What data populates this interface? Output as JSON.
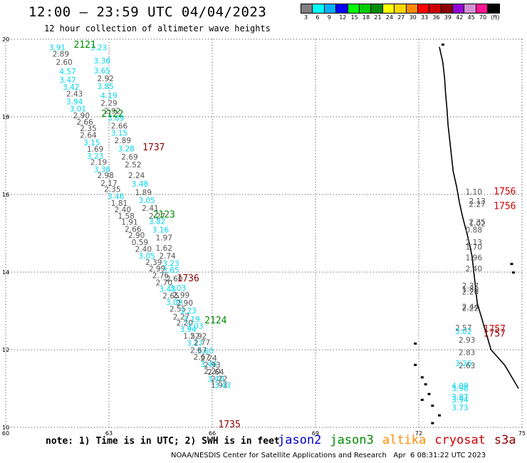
{
  "title": "12:00 — 23:59 UTC 04/04/2023",
  "subtitle": "12 hour collection of altimeter wave heights",
  "legend": {
    "colors": [
      "#7f7f7f",
      "#00ffff",
      "#00b0ff",
      "#0000ff",
      "#00ff00",
      "#00cd00",
      "#008b00",
      "#ffff00",
      "#ffd700",
      "#ff8c00",
      "#ff0000",
      "#cd0000",
      "#8b0000",
      "#9400d3",
      "#d48fd4",
      "#ff1493",
      "#000000"
    ],
    "labels": [
      "3",
      "6",
      "9",
      "12",
      "15",
      "18",
      "21",
      "24",
      "27",
      "30",
      "33",
      "36",
      "39",
      "42",
      "45",
      "70",
      "(ft)"
    ]
  },
  "note": "note: 1) Time is in UTC; 2) SWH is in feet",
  "credit": "NOAA/NESDIS Center for Satellite Applications and Research   Apr  6 08:31:22 UTC 2023",
  "missions": [
    {
      "name": "jason2",
      "color": "#0000cd"
    },
    {
      "name": "jason3",
      "color": "#008b00"
    },
    {
      "name": "altika",
      "color": "#ff8c00"
    },
    {
      "name": "cryosat",
      "color": "#cd0000"
    },
    {
      "name": "s3a",
      "color": "#8b0000"
    }
  ],
  "chart_data": {
    "type": "scatter",
    "title": "12:00 — 23:59 UTC 04/04/2023",
    "subtitle": "12 hour collection of altimeter wave heights",
    "xlabel": "",
    "ylabel": "",
    "xlim": [
      60,
      75
    ],
    "ylim": [
      10,
      20
    ],
    "x_ticks": [
      60,
      63,
      66,
      69,
      72,
      75
    ],
    "y_ticks": [
      10,
      12,
      14,
      16,
      18,
      20
    ],
    "grid": true,
    "gray_color": "#555555",
    "cyan_color": "#00d8f0",
    "points": [
      {
        "x": 61.5,
        "y": 19.72,
        "v": "3.91",
        "c": "cyan"
      },
      {
        "x": 62.7,
        "y": 19.72,
        "v": "3.23",
        "c": "cyan"
      },
      {
        "x": 61.6,
        "y": 19.55,
        "v": "2.89",
        "c": "gray"
      },
      {
        "x": 62.8,
        "y": 19.38,
        "v": "3.36",
        "c": "cyan"
      },
      {
        "x": 61.7,
        "y": 19.34,
        "v": "2.60",
        "c": "gray"
      },
      {
        "x": 62.8,
        "y": 19.12,
        "v": "3.65",
        "c": "cyan"
      },
      {
        "x": 61.8,
        "y": 19.1,
        "v": "4.57",
        "c": "cyan"
      },
      {
        "x": 62.9,
        "y": 18.92,
        "v": "2.92",
        "c": "gray"
      },
      {
        "x": 61.8,
        "y": 18.88,
        "v": "3.47",
        "c": "cyan"
      },
      {
        "x": 61.9,
        "y": 18.7,
        "v": "3.42",
        "c": "cyan"
      },
      {
        "x": 62.9,
        "y": 18.72,
        "v": "3.85",
        "c": "cyan"
      },
      {
        "x": 62.0,
        "y": 18.52,
        "v": "2.43",
        "c": "gray"
      },
      {
        "x": 63.0,
        "y": 18.48,
        "v": "4.19",
        "c": "cyan"
      },
      {
        "x": 62.0,
        "y": 18.32,
        "v": "3.94",
        "c": "cyan"
      },
      {
        "x": 63.0,
        "y": 18.28,
        "v": "2.29",
        "c": "gray"
      },
      {
        "x": 62.1,
        "y": 18.14,
        "v": "3.01",
        "c": "cyan"
      },
      {
        "x": 63.1,
        "y": 18.08,
        "v": "2.92",
        "c": "gray"
      },
      {
        "x": 62.2,
        "y": 17.96,
        "v": "2.90",
        "c": "gray"
      },
      {
        "x": 63.2,
        "y": 17.9,
        "v": "3.69",
        "c": "cyan"
      },
      {
        "x": 62.3,
        "y": 17.8,
        "v": "2.66",
        "c": "gray"
      },
      {
        "x": 63.3,
        "y": 17.7,
        "v": "2.66",
        "c": "gray"
      },
      {
        "x": 62.4,
        "y": 17.63,
        "v": "2.35",
        "c": "gray"
      },
      {
        "x": 63.3,
        "y": 17.51,
        "v": "3.15",
        "c": "cyan"
      },
      {
        "x": 62.4,
        "y": 17.46,
        "v": "2.64",
        "c": "gray"
      },
      {
        "x": 63.4,
        "y": 17.32,
        "v": "2.89",
        "c": "gray"
      },
      {
        "x": 62.5,
        "y": 17.27,
        "v": "3.15",
        "c": "cyan"
      },
      {
        "x": 62.6,
        "y": 17.1,
        "v": "1.69",
        "c": "gray"
      },
      {
        "x": 63.5,
        "y": 17.11,
        "v": "3.28",
        "c": "cyan"
      },
      {
        "x": 62.6,
        "y": 16.92,
        "v": "3.23",
        "c": "cyan"
      },
      {
        "x": 63.6,
        "y": 16.9,
        "v": "2.69",
        "c": "gray"
      },
      {
        "x": 62.7,
        "y": 16.76,
        "v": "2.19",
        "c": "gray"
      },
      {
        "x": 62.8,
        "y": 16.58,
        "v": "3.36",
        "c": "cyan"
      },
      {
        "x": 63.7,
        "y": 16.7,
        "v": "2.52",
        "c": "gray"
      },
      {
        "x": 62.9,
        "y": 16.42,
        "v": "2.98",
        "c": "gray"
      },
      {
        "x": 63.8,
        "y": 16.42,
        "v": "2.24",
        "c": "gray"
      },
      {
        "x": 63.0,
        "y": 16.22,
        "v": "2.17",
        "c": "gray"
      },
      {
        "x": 63.9,
        "y": 16.2,
        "v": "3.48",
        "c": "cyan"
      },
      {
        "x": 63.1,
        "y": 16.06,
        "v": "2.35",
        "c": "gray"
      },
      {
        "x": 64.0,
        "y": 15.98,
        "v": "1.89",
        "c": "gray"
      },
      {
        "x": 63.2,
        "y": 15.88,
        "v": "3.46",
        "c": "cyan"
      },
      {
        "x": 64.1,
        "y": 15.78,
        "v": "3.05",
        "c": "cyan"
      },
      {
        "x": 63.3,
        "y": 15.71,
        "v": "1.81",
        "c": "gray"
      },
      {
        "x": 64.2,
        "y": 15.58,
        "v": "2.41",
        "c": "gray"
      },
      {
        "x": 63.4,
        "y": 15.54,
        "v": "2.40",
        "c": "gray"
      },
      {
        "x": 63.5,
        "y": 15.38,
        "v": "1.58",
        "c": "gray"
      },
      {
        "x": 64.4,
        "y": 15.38,
        "v": "2.27",
        "c": "gray"
      },
      {
        "x": 64.4,
        "y": 15.24,
        "v": "3.82",
        "c": "cyan"
      },
      {
        "x": 63.6,
        "y": 15.22,
        "v": "1.91",
        "c": "gray"
      },
      {
        "x": 63.7,
        "y": 15.04,
        "v": "2.66",
        "c": "gray"
      },
      {
        "x": 64.5,
        "y": 15.02,
        "v": "3.16",
        "c": "cyan"
      },
      {
        "x": 63.8,
        "y": 14.88,
        "v": "2.90",
        "c": "gray"
      },
      {
        "x": 64.6,
        "y": 14.82,
        "v": "1.97",
        "c": "gray"
      },
      {
        "x": 63.9,
        "y": 14.7,
        "v": "0.59",
        "c": "gray"
      },
      {
        "x": 64.0,
        "y": 14.52,
        "v": "2.40",
        "c": "gray"
      },
      {
        "x": 64.6,
        "y": 14.55,
        "v": "1.62",
        "c": "gray"
      },
      {
        "x": 64.1,
        "y": 14.35,
        "v": "3.05",
        "c": "cyan"
      },
      {
        "x": 64.7,
        "y": 14.35,
        "v": "2.74",
        "c": "gray"
      },
      {
        "x": 64.3,
        "y": 14.18,
        "v": "2.39",
        "c": "gray"
      },
      {
        "x": 64.8,
        "y": 14.16,
        "v": "3.23",
        "c": "cyan"
      },
      {
        "x": 64.4,
        "y": 14.02,
        "v": "2.99",
        "c": "gray"
      },
      {
        "x": 64.8,
        "y": 13.98,
        "v": "3.65",
        "c": "cyan"
      },
      {
        "x": 64.5,
        "y": 13.84,
        "v": "2.76",
        "c": "gray"
      },
      {
        "x": 64.9,
        "y": 13.76,
        "v": "2.60",
        "c": "gray"
      },
      {
        "x": 64.6,
        "y": 13.66,
        "v": "2.70",
        "c": "gray"
      },
      {
        "x": 64.7,
        "y": 13.5,
        "v": "3.43",
        "c": "cyan"
      },
      {
        "x": 65.0,
        "y": 13.52,
        "v": "3.03",
        "c": "cyan"
      },
      {
        "x": 64.8,
        "y": 13.32,
        "v": "2.65",
        "c": "gray"
      },
      {
        "x": 65.1,
        "y": 13.34,
        "v": "2.99",
        "c": "gray"
      },
      {
        "x": 64.9,
        "y": 13.16,
        "v": "3.09",
        "c": "cyan"
      },
      {
        "x": 65.2,
        "y": 13.14,
        "v": "2.90",
        "c": "gray"
      },
      {
        "x": 65.0,
        "y": 12.98,
        "v": "2.55",
        "c": "gray"
      },
      {
        "x": 65.3,
        "y": 12.94,
        "v": "3.23",
        "c": "cyan"
      },
      {
        "x": 65.1,
        "y": 12.78,
        "v": "2.27",
        "c": "gray"
      },
      {
        "x": 65.4,
        "y": 12.72,
        "v": "3.19",
        "c": "cyan"
      },
      {
        "x": 65.2,
        "y": 12.62,
        "v": "2.20",
        "c": "gray"
      },
      {
        "x": 65.5,
        "y": 12.54,
        "v": "3.03",
        "c": "cyan"
      },
      {
        "x": 65.3,
        "y": 12.46,
        "v": "3.94",
        "c": "cyan"
      },
      {
        "x": 65.4,
        "y": 12.28,
        "v": "1.52",
        "c": "gray"
      },
      {
        "x": 65.6,
        "y": 12.28,
        "v": "2.92",
        "c": "gray"
      },
      {
        "x": 65.5,
        "y": 12.1,
        "v": "3.27",
        "c": "cyan"
      },
      {
        "x": 65.7,
        "y": 12.12,
        "v": "2.77",
        "c": "gray"
      },
      {
        "x": 65.8,
        "y": 11.9,
        "v": "3.60",
        "c": "cyan"
      },
      {
        "x": 65.6,
        "y": 11.92,
        "v": "2.67",
        "c": "gray"
      },
      {
        "x": 65.7,
        "y": 11.74,
        "v": "2.67",
        "c": "gray"
      },
      {
        "x": 65.9,
        "y": 11.72,
        "v": "2.24",
        "c": "gray"
      },
      {
        "x": 65.9,
        "y": 11.56,
        "v": "3.46",
        "c": "cyan"
      },
      {
        "x": 66.0,
        "y": 11.54,
        "v": "2.93",
        "c": "gray"
      },
      {
        "x": 66.0,
        "y": 11.38,
        "v": "2.20",
        "c": "gray"
      },
      {
        "x": 66.1,
        "y": 11.36,
        "v": "2.64",
        "c": "gray"
      },
      {
        "x": 66.1,
        "y": 11.18,
        "v": "3.40",
        "c": "cyan"
      },
      {
        "x": 66.2,
        "y": 11.18,
        "v": "2.22",
        "c": "gray"
      },
      {
        "x": 66.2,
        "y": 11.02,
        "v": "1.93",
        "c": "gray"
      },
      {
        "x": 66.3,
        "y": 11.02,
        "v": "3.43",
        "c": "cyan"
      },
      {
        "x": 73.6,
        "y": 16.0,
        "v": "1.10",
        "c": "gray"
      },
      {
        "x": 73.7,
        "y": 15.76,
        "v": "2.13",
        "c": "gray"
      },
      {
        "x": 73.7,
        "y": 15.68,
        "v": "2.27",
        "c": "gray"
      },
      {
        "x": 73.7,
        "y": 15.22,
        "v": "2.35",
        "c": "gray"
      },
      {
        "x": 73.7,
        "y": 15.18,
        "v": "1.02",
        "c": "gray"
      },
      {
        "x": 73.6,
        "y": 15.02,
        "v": "0.88",
        "c": "gray"
      },
      {
        "x": 73.6,
        "y": 14.7,
        "v": "2.13",
        "c": "gray"
      },
      {
        "x": 73.6,
        "y": 14.58,
        "v": "1.70",
        "c": "gray"
      },
      {
        "x": 73.6,
        "y": 14.3,
        "v": "1.96",
        "c": "gray"
      },
      {
        "x": 73.6,
        "y": 14.02,
        "v": "2.40",
        "c": "gray"
      },
      {
        "x": 73.5,
        "y": 13.58,
        "v": "2.37",
        "c": "gray"
      },
      {
        "x": 73.5,
        "y": 13.5,
        "v": "1.80",
        "c": "gray"
      },
      {
        "x": 73.5,
        "y": 13.42,
        "v": "2.20",
        "c": "gray"
      },
      {
        "x": 73.5,
        "y": 13.04,
        "v": "2.44",
        "c": "gray"
      },
      {
        "x": 73.5,
        "y": 13.0,
        "v": "2.22",
        "c": "gray"
      },
      {
        "x": 73.3,
        "y": 12.5,
        "v": "2.57",
        "c": "gray"
      },
      {
        "x": 73.3,
        "y": 12.4,
        "v": "3.02",
        "c": "cyan"
      },
      {
        "x": 73.4,
        "y": 12.18,
        "v": "2.93",
        "c": "gray"
      },
      {
        "x": 73.4,
        "y": 11.86,
        "v": "2.83",
        "c": "gray"
      },
      {
        "x": 73.3,
        "y": 11.58,
        "v": "3.26",
        "c": "cyan"
      },
      {
        "x": 73.4,
        "y": 11.52,
        "v": "2.63",
        "c": "gray"
      },
      {
        "x": 73.2,
        "y": 11.0,
        "v": "4.09",
        "c": "cyan"
      },
      {
        "x": 73.2,
        "y": 10.94,
        "v": "3.98",
        "c": "cyan"
      },
      {
        "x": 73.2,
        "y": 10.72,
        "v": "3.87",
        "c": "cyan"
      },
      {
        "x": 73.2,
        "y": 10.64,
        "v": "3.94",
        "c": "cyan"
      },
      {
        "x": 73.2,
        "y": 10.44,
        "v": "3.73",
        "c": "cyan"
      }
    ],
    "passes": [
      {
        "x": 62.3,
        "y": 19.78,
        "label": "2121",
        "mission": "jason3"
      },
      {
        "x": 63.1,
        "y": 18.0,
        "label": "2122",
        "mission": "jason3"
      },
      {
        "x": 64.6,
        "y": 15.4,
        "label": "2123",
        "mission": "jason3"
      },
      {
        "x": 66.1,
        "y": 12.68,
        "label": "2124",
        "mission": "jason3"
      },
      {
        "x": 64.3,
        "y": 17.14,
        "label": "1737",
        "mission": "s3a"
      },
      {
        "x": 65.3,
        "y": 13.76,
        "label": "1736",
        "mission": "s3a"
      },
      {
        "x": 66.5,
        "y": 10.0,
        "label": "1735",
        "mission": "s3a"
      },
      {
        "x": 74.5,
        "y": 16.0,
        "label": "1756",
        "mission": "cryosat"
      },
      {
        "x": 74.5,
        "y": 15.62,
        "label": "1756",
        "mission": "cryosat"
      },
      {
        "x": 74.2,
        "y": 12.46,
        "label": "1757",
        "mission": "cryosat"
      },
      {
        "x": 74.2,
        "y": 12.34,
        "label": "1757",
        "mission": "s3a"
      }
    ],
    "coastline": [
      [
        72.6,
        19.8
      ],
      [
        72.7,
        19.4
      ],
      [
        72.75,
        19.0
      ],
      [
        72.78,
        18.6
      ],
      [
        72.82,
        18.2
      ],
      [
        72.85,
        17.8
      ],
      [
        72.9,
        17.4
      ],
      [
        72.95,
        17.0
      ],
      [
        73.0,
        16.6
      ],
      [
        73.1,
        16.2
      ],
      [
        73.18,
        15.8
      ],
      [
        73.28,
        15.4
      ],
      [
        73.4,
        15.0
      ],
      [
        73.48,
        14.7
      ],
      [
        73.55,
        14.4
      ],
      [
        73.6,
        14.0
      ],
      [
        73.65,
        13.6
      ],
      [
        73.7,
        13.2
      ],
      [
        73.8,
        12.9
      ],
      [
        73.9,
        12.6
      ],
      [
        74.0,
        12.3
      ],
      [
        74.1,
        12.0
      ],
      [
        74.3,
        11.8
      ],
      [
        74.5,
        11.6
      ],
      [
        74.7,
        11.3
      ],
      [
        74.9,
        11.0
      ]
    ],
    "islands": [
      [
        72.7,
        19.85
      ],
      [
        74.7,
        14.2
      ],
      [
        74.75,
        13.98
      ],
      [
        71.9,
        12.15
      ],
      [
        71.9,
        11.6
      ],
      [
        72.1,
        11.28
      ],
      [
        72.2,
        11.1
      ],
      [
        72.3,
        10.85
      ],
      [
        72.1,
        10.7
      ],
      [
        72.4,
        10.55
      ],
      [
        72.6,
        10.3
      ],
      [
        72.4,
        10.1
      ]
    ]
  }
}
